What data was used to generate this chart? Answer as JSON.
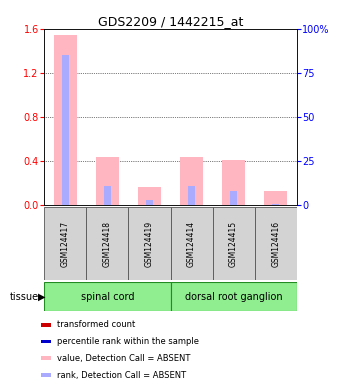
{
  "title": "GDS2209 / 1442215_at",
  "samples": [
    "GSM124417",
    "GSM124418",
    "GSM124419",
    "GSM124414",
    "GSM124415",
    "GSM124416"
  ],
  "tissue_groups": [
    {
      "label": "spinal cord",
      "start": 0,
      "end": 2
    },
    {
      "label": "dorsal root ganglion",
      "start": 3,
      "end": 5
    }
  ],
  "value_absent": [
    1.54,
    0.44,
    0.17,
    0.44,
    0.41,
    0.13
  ],
  "rank_absent_pct": [
    85,
    11,
    3,
    11,
    8,
    1
  ],
  "ylim_left": [
    0,
    1.6
  ],
  "ylim_right": [
    0,
    100
  ],
  "yticks_left": [
    0,
    0.4,
    0.8,
    1.2,
    1.6
  ],
  "yticks_right": [
    0,
    25,
    50,
    75,
    100
  ],
  "color_value_absent": "#FFB6C1",
  "color_rank_absent": "#AAAAFF",
  "color_value_present": "#CC0000",
  "color_rank_present": "#0000CC",
  "tissue_color": "#90EE90",
  "legend_items": [
    [
      "#CC0000",
      "transformed count"
    ],
    [
      "#0000CC",
      "percentile rank within the sample"
    ],
    [
      "#FFB6C1",
      "value, Detection Call = ABSENT"
    ],
    [
      "#AAAAFF",
      "rank, Detection Call = ABSENT"
    ]
  ]
}
